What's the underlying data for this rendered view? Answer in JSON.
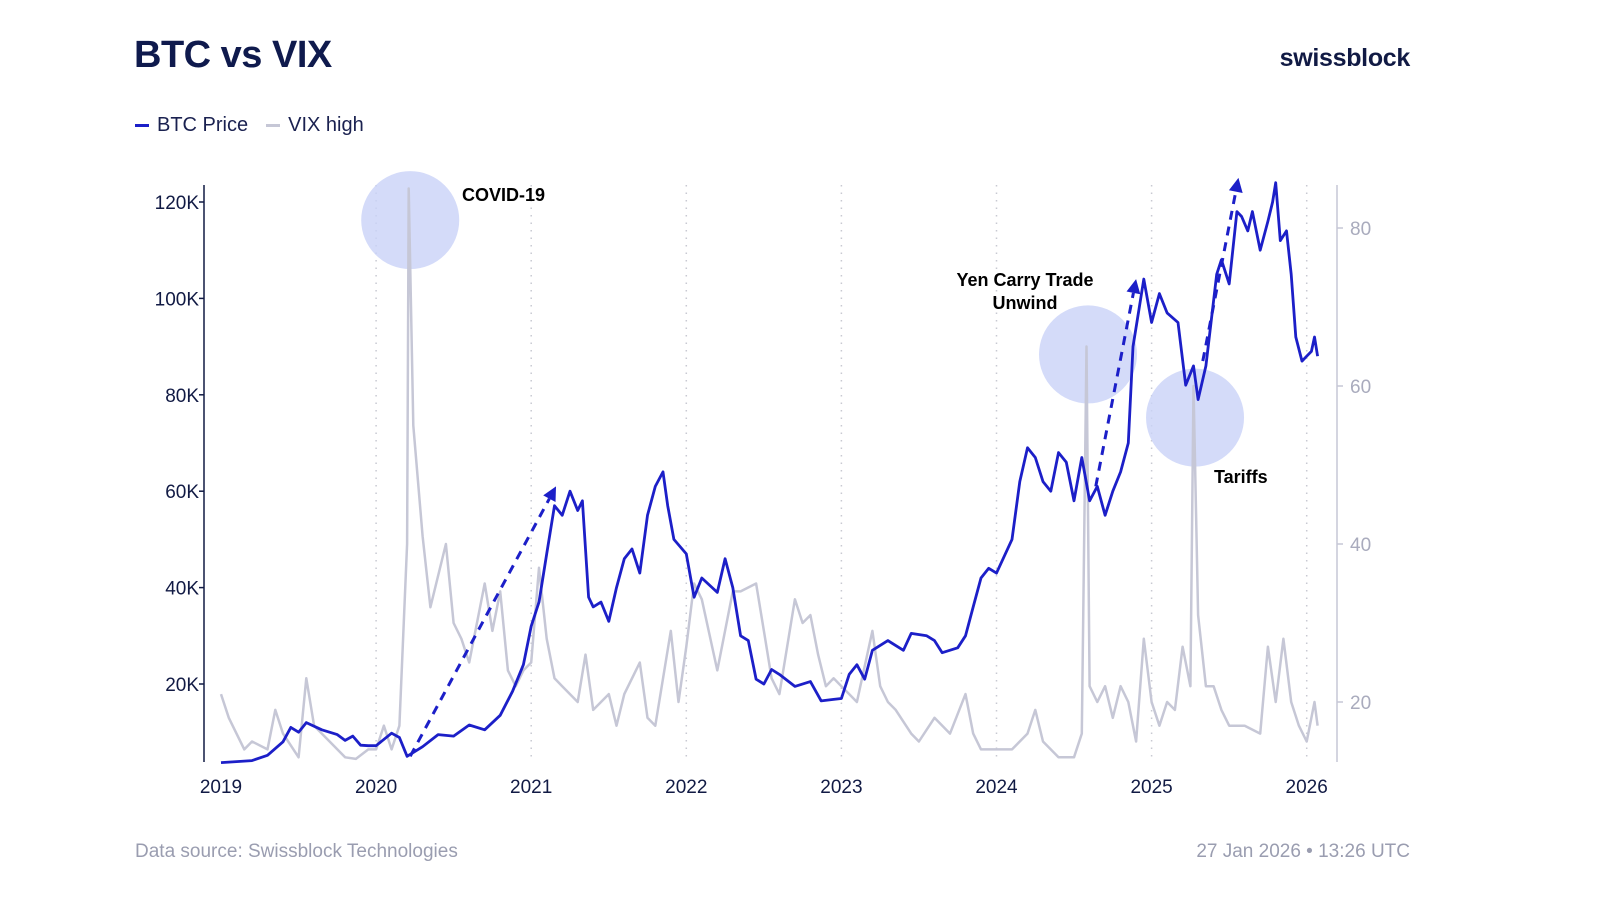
{
  "header": {
    "title": "BTC vs VIX",
    "logo": "swissblock"
  },
  "footer": {
    "source": "Data source: Swissblock Technologies",
    "timestamp": "27 Jan 2026 • 13:26 UTC"
  },
  "colors": {
    "btc": "#1c1fc8",
    "vix": "#c6c7d6",
    "highlight": "#c9d2f8",
    "arrow": "#1c1fc8"
  },
  "chart_data": {
    "type": "line",
    "title": "BTC vs VIX",
    "legend": {
      "placement": "top-left",
      "entries": [
        "BTC Price",
        "VIX high"
      ]
    },
    "x_ticks": [
      "2019",
      "2020",
      "2021",
      "2022",
      "2023",
      "2024",
      "2025",
      "2026"
    ],
    "y_left": {
      "ticks": [
        "20K",
        "40K",
        "60K",
        "80K",
        "100K",
        "120K"
      ],
      "tick_values": [
        20,
        40,
        60,
        80,
        100,
        120
      ],
      "range": [
        4,
        124
      ],
      "unit": "K USD"
    },
    "y_right": {
      "ticks": [
        "20",
        "40",
        "60",
        "80"
      ],
      "tick_values": [
        20,
        40,
        60,
        80
      ],
      "range": [
        12.7,
        85.5
      ]
    },
    "grid": "vertical dotted at year ticks",
    "series": [
      {
        "name": "BTC Price",
        "axis": "left",
        "points": [
          [
            2019.0,
            3.7
          ],
          [
            2019.1,
            3.9
          ],
          [
            2019.2,
            4.1
          ],
          [
            2019.3,
            5.2
          ],
          [
            2019.4,
            8
          ],
          [
            2019.45,
            11
          ],
          [
            2019.5,
            10
          ],
          [
            2019.55,
            12
          ],
          [
            2019.65,
            10.5
          ],
          [
            2019.75,
            9.5
          ],
          [
            2019.8,
            8.3
          ],
          [
            2019.85,
            9.2
          ],
          [
            2019.9,
            7.3
          ],
          [
            2019.95,
            7.2
          ],
          [
            2020.0,
            7.2
          ],
          [
            2020.1,
            9.8
          ],
          [
            2020.15,
            8.9
          ],
          [
            2020.2,
            5.0
          ],
          [
            2020.3,
            7.0
          ],
          [
            2020.4,
            9.5
          ],
          [
            2020.5,
            9.2
          ],
          [
            2020.6,
            11.5
          ],
          [
            2020.7,
            10.5
          ],
          [
            2020.8,
            13.5
          ],
          [
            2020.88,
            18.5
          ],
          [
            2020.95,
            24
          ],
          [
            2021.0,
            32
          ],
          [
            2021.05,
            37
          ],
          [
            2021.1,
            47
          ],
          [
            2021.15,
            57
          ],
          [
            2021.2,
            55
          ],
          [
            2021.25,
            60
          ],
          [
            2021.3,
            56
          ],
          [
            2021.33,
            58
          ],
          [
            2021.37,
            38
          ],
          [
            2021.4,
            36
          ],
          [
            2021.45,
            37
          ],
          [
            2021.5,
            33
          ],
          [
            2021.55,
            40
          ],
          [
            2021.6,
            46
          ],
          [
            2021.65,
            48
          ],
          [
            2021.7,
            43
          ],
          [
            2021.75,
            55
          ],
          [
            2021.8,
            61
          ],
          [
            2021.85,
            64
          ],
          [
            2021.88,
            57
          ],
          [
            2021.92,
            50
          ],
          [
            2022.0,
            47
          ],
          [
            2022.05,
            38
          ],
          [
            2022.1,
            42
          ],
          [
            2022.2,
            39
          ],
          [
            2022.25,
            46
          ],
          [
            2022.3,
            40
          ],
          [
            2022.35,
            30
          ],
          [
            2022.4,
            29
          ],
          [
            2022.45,
            21
          ],
          [
            2022.5,
            20
          ],
          [
            2022.55,
            23
          ],
          [
            2022.6,
            22
          ],
          [
            2022.7,
            19.5
          ],
          [
            2022.8,
            20.5
          ],
          [
            2022.87,
            16.5
          ],
          [
            2022.95,
            16.8
          ],
          [
            2023.0,
            17
          ],
          [
            2023.05,
            22
          ],
          [
            2023.1,
            24
          ],
          [
            2023.15,
            21
          ],
          [
            2023.2,
            27
          ],
          [
            2023.3,
            29
          ],
          [
            2023.4,
            27
          ],
          [
            2023.45,
            30.5
          ],
          [
            2023.55,
            30
          ],
          [
            2023.6,
            29
          ],
          [
            2023.65,
            26.5
          ],
          [
            2023.75,
            27.5
          ],
          [
            2023.8,
            30
          ],
          [
            2023.85,
            36
          ],
          [
            2023.9,
            42
          ],
          [
            2023.95,
            44
          ],
          [
            2024.0,
            43
          ],
          [
            2024.1,
            50
          ],
          [
            2024.15,
            62
          ],
          [
            2024.2,
            69
          ],
          [
            2024.25,
            67
          ],
          [
            2024.3,
            62
          ],
          [
            2024.35,
            60
          ],
          [
            2024.4,
            68
          ],
          [
            2024.45,
            66
          ],
          [
            2024.5,
            58
          ],
          [
            2024.55,
            67
          ],
          [
            2024.6,
            58
          ],
          [
            2024.65,
            61
          ],
          [
            2024.7,
            55
          ],
          [
            2024.75,
            60
          ],
          [
            2024.8,
            64
          ],
          [
            2024.85,
            70
          ],
          [
            2024.88,
            90
          ],
          [
            2024.92,
            98
          ],
          [
            2024.95,
            104
          ],
          [
            2025.0,
            95
          ],
          [
            2025.05,
            101
          ],
          [
            2025.1,
            97
          ],
          [
            2025.17,
            95
          ],
          [
            2025.22,
            82
          ],
          [
            2025.27,
            86
          ],
          [
            2025.3,
            79
          ],
          [
            2025.35,
            86
          ],
          [
            2025.42,
            105
          ],
          [
            2025.45,
            108
          ],
          [
            2025.5,
            103
          ],
          [
            2025.55,
            118
          ],
          [
            2025.58,
            117
          ],
          [
            2025.62,
            114
          ],
          [
            2025.65,
            118
          ],
          [
            2025.7,
            110
          ],
          [
            2025.75,
            116
          ],
          [
            2025.78,
            120
          ],
          [
            2025.8,
            124
          ],
          [
            2025.83,
            112
          ],
          [
            2025.87,
            114
          ],
          [
            2025.9,
            105
          ],
          [
            2025.93,
            92
          ],
          [
            2025.97,
            87
          ],
          [
            2026.0,
            88
          ],
          [
            2026.03,
            89
          ],
          [
            2026.05,
            92
          ],
          [
            2026.07,
            88
          ]
        ]
      },
      {
        "name": "VIX high",
        "axis": "right",
        "points": [
          [
            2019.0,
            21
          ],
          [
            2019.05,
            18
          ],
          [
            2019.1,
            16
          ],
          [
            2019.15,
            14
          ],
          [
            2019.2,
            15
          ],
          [
            2019.3,
            14
          ],
          [
            2019.35,
            19
          ],
          [
            2019.4,
            16
          ],
          [
            2019.5,
            13
          ],
          [
            2019.55,
            23
          ],
          [
            2019.6,
            17
          ],
          [
            2019.7,
            15
          ],
          [
            2019.8,
            13
          ],
          [
            2019.87,
            12.8
          ],
          [
            2019.95,
            14
          ],
          [
            2020.0,
            14
          ],
          [
            2020.05,
            17
          ],
          [
            2020.1,
            14
          ],
          [
            2020.15,
            17
          ],
          [
            2020.2,
            40
          ],
          [
            2020.21,
            85
          ],
          [
            2020.24,
            55
          ],
          [
            2020.3,
            41
          ],
          [
            2020.35,
            32
          ],
          [
            2020.45,
            40
          ],
          [
            2020.5,
            30
          ],
          [
            2020.55,
            28
          ],
          [
            2020.6,
            25
          ],
          [
            2020.7,
            35
          ],
          [
            2020.75,
            29
          ],
          [
            2020.8,
            34
          ],
          [
            2020.85,
            24
          ],
          [
            2020.9,
            22
          ],
          [
            2020.95,
            24
          ],
          [
            2021.0,
            25
          ],
          [
            2021.05,
            37
          ],
          [
            2021.1,
            28
          ],
          [
            2021.15,
            23
          ],
          [
            2021.2,
            22
          ],
          [
            2021.3,
            20
          ],
          [
            2021.35,
            26
          ],
          [
            2021.4,
            19
          ],
          [
            2021.5,
            21
          ],
          [
            2021.55,
            17
          ],
          [
            2021.6,
            21
          ],
          [
            2021.7,
            25
          ],
          [
            2021.75,
            18
          ],
          [
            2021.8,
            17
          ],
          [
            2021.9,
            29
          ],
          [
            2021.95,
            20
          ],
          [
            2022.0,
            27
          ],
          [
            2022.05,
            35
          ],
          [
            2022.1,
            33
          ],
          [
            2022.2,
            24
          ],
          [
            2022.3,
            34
          ],
          [
            2022.35,
            34
          ],
          [
            2022.45,
            35
          ],
          [
            2022.5,
            29
          ],
          [
            2022.55,
            23
          ],
          [
            2022.6,
            21
          ],
          [
            2022.7,
            33
          ],
          [
            2022.75,
            30
          ],
          [
            2022.8,
            31
          ],
          [
            2022.85,
            26
          ],
          [
            2022.9,
            22
          ],
          [
            2022.95,
            23
          ],
          [
            2023.0,
            22
          ],
          [
            2023.05,
            21
          ],
          [
            2023.1,
            20
          ],
          [
            2023.2,
            29
          ],
          [
            2023.25,
            22
          ],
          [
            2023.3,
            20
          ],
          [
            2023.35,
            19
          ],
          [
            2023.45,
            16
          ],
          [
            2023.5,
            15
          ],
          [
            2023.6,
            18
          ],
          [
            2023.7,
            16
          ],
          [
            2023.8,
            21
          ],
          [
            2023.85,
            16
          ],
          [
            2023.9,
            14
          ],
          [
            2024.0,
            14
          ],
          [
            2024.1,
            14
          ],
          [
            2024.2,
            16
          ],
          [
            2024.25,
            19
          ],
          [
            2024.3,
            15
          ],
          [
            2024.4,
            13
          ],
          [
            2024.5,
            13
          ],
          [
            2024.55,
            16
          ],
          [
            2024.58,
            65
          ],
          [
            2024.6,
            22
          ],
          [
            2024.65,
            20
          ],
          [
            2024.7,
            22
          ],
          [
            2024.75,
            18
          ],
          [
            2024.8,
            22
          ],
          [
            2024.85,
            20
          ],
          [
            2024.9,
            15
          ],
          [
            2024.95,
            28
          ],
          [
            2025.0,
            20
          ],
          [
            2025.05,
            17
          ],
          [
            2025.1,
            20
          ],
          [
            2025.15,
            19
          ],
          [
            2025.2,
            27
          ],
          [
            2025.25,
            22
          ],
          [
            2025.27,
            60
          ],
          [
            2025.3,
            31
          ],
          [
            2025.35,
            22
          ],
          [
            2025.4,
            22
          ],
          [
            2025.45,
            19
          ],
          [
            2025.5,
            17
          ],
          [
            2025.6,
            17
          ],
          [
            2025.7,
            16
          ],
          [
            2025.75,
            27
          ],
          [
            2025.8,
            20
          ],
          [
            2025.85,
            28
          ],
          [
            2025.9,
            20
          ],
          [
            2025.95,
            17
          ],
          [
            2026.0,
            15
          ],
          [
            2026.05,
            20
          ],
          [
            2026.07,
            17
          ]
        ]
      }
    ],
    "annotations": [
      {
        "label": "COVID-19"
      },
      {
        "label": "Yen Carry Trade",
        "label2": "Unwind"
      },
      {
        "label": "Tariffs"
      }
    ]
  }
}
